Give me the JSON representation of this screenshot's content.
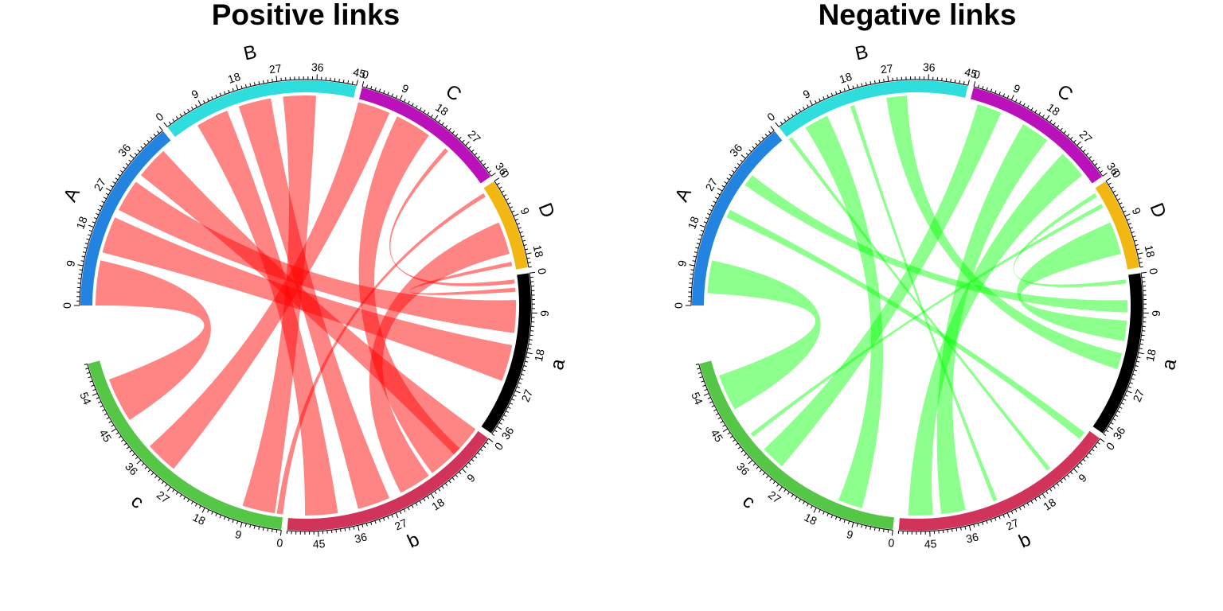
{
  "chart_data": [
    {
      "type": "chord",
      "title": "Positive links",
      "link_color": "#ff0000",
      "link_opacity": 0.48,
      "sectors": [
        {
          "name": "A",
          "max": 45,
          "color": "#2284e0",
          "ticks": [
            0,
            9,
            18,
            27,
            36
          ]
        },
        {
          "name": "B",
          "max": 45,
          "color": "#2fdddd",
          "ticks": [
            0,
            9,
            18,
            27,
            36,
            45
          ]
        },
        {
          "name": "C",
          "max": 36,
          "color": "#bb11bb",
          "ticks": [
            0,
            9,
            18,
            27,
            36
          ]
        },
        {
          "name": "D",
          "max": 21,
          "color": "#f2b712",
          "ticks": [
            0,
            9,
            18
          ]
        },
        {
          "name": "a",
          "max": 38,
          "color": "#000000",
          "ticks": [
            0,
            9,
            18,
            27,
            36
          ]
        },
        {
          "name": "b",
          "max": 52,
          "color": "#d0345a",
          "ticks": [
            0,
            9,
            18,
            27,
            36,
            45
          ]
        },
        {
          "name": "c",
          "max": 61,
          "color": "#55c645",
          "ticks": [
            0,
            9,
            18,
            27,
            36,
            45,
            54
          ]
        }
      ],
      "links": [
        {
          "from": "A",
          "from_range": [
            0,
            11
          ],
          "to": "c",
          "to_range": [
            45,
            56
          ]
        },
        {
          "from": "A",
          "from_range": [
            13,
            22
          ],
          "to": "a",
          "to_range": [
            17,
            26
          ]
        },
        {
          "from": "A",
          "from_range": [
            24,
            32
          ],
          "to": "a",
          "to_range": [
            6,
            14
          ]
        },
        {
          "from": "A",
          "from_range": [
            34,
            42
          ],
          "to": "b",
          "to_range": [
            0,
            8
          ]
        },
        {
          "from": "B",
          "from_range": [
            6,
            14
          ],
          "to": "b",
          "to_range": [
            40,
            48
          ]
        },
        {
          "from": "B",
          "from_range": [
            17,
            25
          ],
          "to": "b",
          "to_range": [
            27,
            35
          ]
        },
        {
          "from": "B",
          "from_range": [
            28,
            36
          ],
          "to": "c",
          "to_range": [
            2,
            10
          ]
        },
        {
          "from": "C",
          "from_range": [
            0,
            8
          ],
          "to": "c",
          "to_range": [
            29,
            37
          ]
        },
        {
          "from": "C",
          "from_range": [
            10,
            19
          ],
          "to": "b",
          "to_range": [
            6,
            15
          ]
        },
        {
          "from": "C",
          "from_range": [
            24,
            25
          ],
          "to": "a",
          "to_range": [
            1,
            2
          ]
        },
        {
          "from": "D",
          "from_range": [
            1,
            2
          ],
          "to": "c",
          "to_range": [
            0,
            1.5
          ]
        },
        {
          "from": "D",
          "from_range": [
            9,
            17
          ],
          "to": "b",
          "to_range": [
            16,
            24
          ]
        },
        {
          "from": "D",
          "from_range": [
            19,
            20
          ],
          "to": "a",
          "to_range": [
            3,
            4
          ]
        }
      ]
    },
    {
      "type": "chord",
      "title": "Negative links",
      "link_color": "#00ff00",
      "link_opacity": 0.45,
      "sectors": [
        {
          "name": "A",
          "max": 45,
          "color": "#2284e0",
          "ticks": [
            0,
            9,
            18,
            27,
            36
          ]
        },
        {
          "name": "B",
          "max": 45,
          "color": "#2fdddd",
          "ticks": [
            0,
            9,
            18,
            27,
            36,
            45
          ]
        },
        {
          "name": "C",
          "max": 36,
          "color": "#bb11bb",
          "ticks": [
            0,
            9,
            18,
            27,
            36
          ]
        },
        {
          "name": "D",
          "max": 21,
          "color": "#f2b712",
          "ticks": [
            0,
            9,
            18
          ]
        },
        {
          "name": "a",
          "max": 38,
          "color": "#000000",
          "ticks": [
            0,
            9,
            18,
            27,
            36
          ]
        },
        {
          "name": "b",
          "max": 52,
          "color": "#d0345a",
          "ticks": [
            0,
            9,
            18,
            27,
            36,
            45
          ]
        },
        {
          "name": "c",
          "max": 61,
          "color": "#55c645",
          "ticks": [
            0,
            9,
            18,
            27,
            36,
            45,
            54
          ]
        }
      ],
      "links": [
        {
          "from": "A",
          "from_range": [
            3,
            11
          ],
          "to": "c",
          "to_range": [
            48,
            57
          ]
        },
        {
          "from": "A",
          "from_range": [
            22,
            24
          ],
          "to": "b",
          "to_range": [
            1,
            3
          ]
        },
        {
          "from": "A",
          "from_range": [
            31,
            34
          ],
          "to": "a",
          "to_range": [
            6,
            9
          ]
        },
        {
          "from": "B",
          "from_range": [
            0,
            1
          ],
          "to": "b",
          "to_range": [
            13,
            14
          ]
        },
        {
          "from": "B",
          "from_range": [
            5,
            11
          ],
          "to": "c",
          "to_range": [
            8,
            14
          ]
        },
        {
          "from": "B",
          "from_range": [
            17,
            18
          ],
          "to": "b",
          "to_range": [
            28,
            29
          ]
        },
        {
          "from": "B",
          "from_range": [
            26,
            31
          ],
          "to": "a",
          "to_range": [
            19,
            23
          ]
        },
        {
          "from": "C",
          "from_range": [
            2,
            8
          ],
          "to": "c",
          "to_range": [
            30,
            36
          ]
        },
        {
          "from": "C",
          "from_range": [
            14,
            21
          ],
          "to": "b",
          "to_range": [
            36,
            42
          ]
        },
        {
          "from": "C",
          "from_range": [
            26,
            33
          ],
          "to": "b",
          "to_range": [
            44,
            50
          ]
        },
        {
          "from": "D",
          "from_range": [
            1,
            2
          ],
          "to": "a",
          "to_range": [
            1,
            2
          ]
        },
        {
          "from": "D",
          "from_range": [
            4,
            5
          ],
          "to": "c",
          "to_range": [
            40,
            41
          ]
        },
        {
          "from": "D",
          "from_range": [
            9,
            17
          ],
          "to": "a",
          "to_range": [
            11,
            16
          ]
        }
      ]
    }
  ]
}
